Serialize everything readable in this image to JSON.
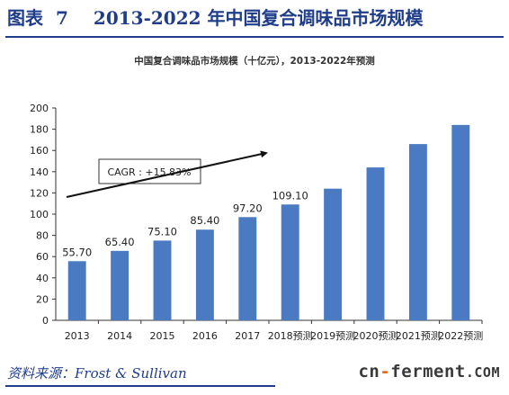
{
  "figure": {
    "label": "图表",
    "number": "7",
    "title": "2013-2022 年中国复合调味品市场规模"
  },
  "source": "资料来源：Frost & Sullivan",
  "watermark": {
    "part1": "cn",
    "dash": "-",
    "part2": "ferment",
    "part3": ".COM"
  },
  "chart_data": {
    "type": "bar",
    "title": "中国复合调味品市场规模（十亿元），2013-2022年预测",
    "xlabel": "",
    "ylabel": "",
    "categories": [
      "2013",
      "2014",
      "2015",
      "2016",
      "2017",
      "2018预测",
      "2019预测",
      "2020预测",
      "2021预测",
      "2022预测"
    ],
    "values": [
      55.7,
      65.4,
      75.1,
      85.4,
      97.2,
      109.1,
      124,
      144,
      166,
      184
    ],
    "data_labels": [
      "55.70",
      "65.40",
      "75.10",
      "85.40",
      "97.20",
      "109.10",
      "",
      "",
      "",
      ""
    ],
    "ylim": [
      0,
      200
    ],
    "yticks": [
      0,
      20,
      40,
      60,
      80,
      100,
      120,
      140,
      160,
      180,
      200
    ],
    "grid": false,
    "legend": "none",
    "bar_color": "#4a7ac2",
    "annotation": "CAGR : +15.83%"
  }
}
